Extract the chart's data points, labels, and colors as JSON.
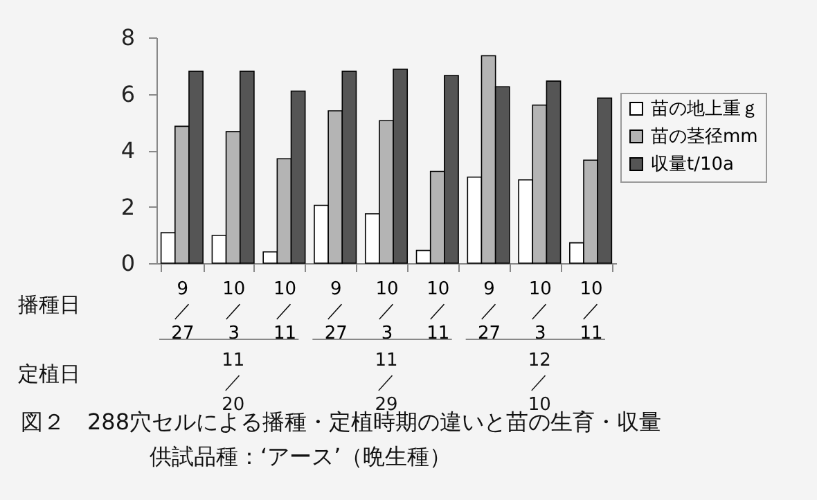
{
  "chart_data": {
    "type": "bar",
    "title": "図２　288穴セルによる播種・定植時期の違いと苗の生育・収量",
    "subtitle": "供試品種：‘アース’（晩生種）",
    "xlabel": "播種日",
    "categories": [
      "9\n／\n27",
      "10\n／\n3",
      "10\n／\n11",
      "9\n／\n27",
      "10\n／\n3",
      "10\n／\n11",
      "9\n／\n27",
      "10\n／\n3",
      "10\n／\n11"
    ],
    "annotations": [
      "定植日",
      "11\n／\n20",
      "11\n／\n29",
      "12\n／\n10"
    ],
    "series": [
      {
        "name": "苗の地上重ｇ",
        "color": "#ffffff",
        "values": [
          1.08,
          0.98,
          0.4,
          2.05,
          1.75,
          0.45,
          3.05,
          2.95,
          0.72
        ]
      },
      {
        "name": "苗の茎径mm",
        "color": "#b4b4b4",
        "values": [
          4.85,
          4.66,
          3.7,
          5.4,
          5.05,
          3.25,
          7.35,
          5.6,
          3.65
        ]
      },
      {
        "name": "収量t/10a",
        "color": "#555555",
        "values": [
          6.8,
          6.8,
          6.1,
          6.8,
          6.87,
          6.65,
          6.25,
          6.45,
          5.85
        ]
      }
    ],
    "ylim": [
      0,
      8
    ],
    "yticks": [
      0,
      2,
      4,
      6,
      8
    ],
    "grid": false,
    "legend": "right"
  }
}
